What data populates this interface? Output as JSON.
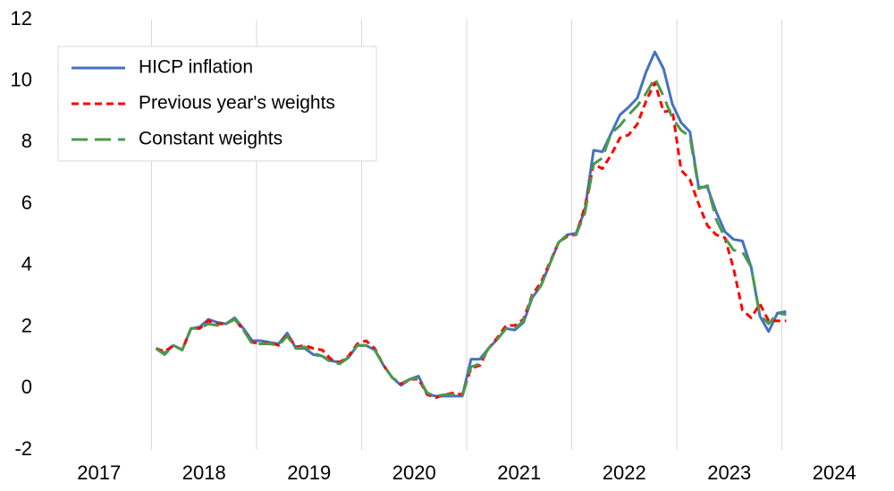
{
  "chart_data": {
    "type": "line",
    "categories": [
      "2017",
      "2018",
      "2019",
      "2020",
      "2021",
      "2022",
      "2023",
      "2024"
    ],
    "ylim": [
      -2,
      12
    ],
    "yticks": [
      -2,
      0,
      2,
      4,
      6,
      8,
      10,
      12
    ],
    "legend": "upper left",
    "series": [
      {
        "name": "HICP inflation",
        "color": "#4472c4",
        "dash": "solid",
        "values": [
          [],
          [
            1.3,
            1.15,
            1.4,
            1.25,
            1.95,
            2.0,
            2.25,
            2.15,
            2.1,
            2.3,
            1.95,
            1.55
          ],
          [
            1.55,
            1.5,
            1.45,
            1.8,
            1.3,
            1.3,
            1.1,
            1.05,
            0.9,
            0.85,
            1.0,
            1.4
          ],
          [
            1.4,
            1.25,
            0.75,
            0.35,
            0.1,
            0.3,
            0.4,
            -0.2,
            -0.25,
            -0.25,
            -0.25,
            -0.25
          ],
          [
            0.95,
            0.95,
            1.3,
            1.6,
            1.95,
            1.9,
            2.15,
            2.95,
            3.35,
            4.05,
            4.75,
            5.0
          ],
          [
            5.05,
            5.8,
            7.75,
            7.7,
            8.3,
            8.9,
            9.15,
            9.45,
            10.3,
            10.95,
            10.4,
            9.25
          ],
          [
            8.65,
            8.35,
            6.55,
            6.55,
            5.75,
            5.1,
            4.85,
            4.8,
            3.95,
            2.35,
            1.85,
            2.45
          ],
          [
            2.5
          ]
        ]
      },
      {
        "name": "Previous year's weights",
        "color": "#ff0000",
        "dash": "short",
        "values": [
          [],
          [
            1.3,
            1.2,
            1.4,
            1.25,
            1.95,
            1.95,
            2.2,
            2.1,
            2.1,
            2.25,
            1.9,
            1.5
          ],
          [
            1.45,
            1.5,
            1.4,
            1.75,
            1.35,
            1.4,
            1.3,
            1.25,
            0.95,
            0.85,
            1.05,
            1.45
          ],
          [
            1.55,
            1.3,
            0.75,
            0.35,
            0.15,
            0.3,
            0.3,
            -0.2,
            -0.3,
            -0.2,
            -0.15,
            -0.2
          ],
          [
            0.65,
            0.75,
            1.3,
            1.65,
            2.05,
            2.05,
            2.25,
            3.05,
            3.45,
            4.1,
            4.75,
            4.95
          ],
          [
            5.0,
            5.9,
            7.3,
            7.15,
            7.6,
            8.15,
            8.25,
            8.6,
            9.35,
            9.95,
            9.0,
            9.05
          ],
          [
            7.1,
            6.8,
            6.0,
            5.3,
            5.0,
            4.9,
            3.9,
            2.55,
            2.3,
            2.75,
            2.2,
            2.2
          ],
          [
            2.2
          ]
        ]
      },
      {
        "name": "Constant weights",
        "color": "#4a9a4a",
        "dash": "long",
        "values": [
          [],
          [
            1.3,
            1.1,
            1.4,
            1.25,
            1.95,
            1.95,
            2.1,
            2.05,
            2.1,
            2.25,
            1.9,
            1.45
          ],
          [
            1.45,
            1.45,
            1.4,
            1.7,
            1.3,
            1.35,
            1.15,
            1.05,
            0.85,
            0.8,
            1.0,
            1.4
          ],
          [
            1.4,
            1.25,
            0.75,
            0.35,
            0.15,
            0.3,
            0.35,
            -0.15,
            -0.25,
            -0.2,
            -0.2,
            -0.25
          ],
          [
            0.7,
            0.8,
            1.3,
            1.6,
            1.95,
            1.95,
            2.2,
            3.0,
            3.35,
            4.05,
            4.75,
            5.0
          ],
          [
            5.0,
            5.7,
            7.3,
            7.5,
            8.3,
            8.55,
            8.9,
            9.2,
            9.6,
            10.1,
            9.5,
            8.8
          ],
          [
            8.4,
            8.2,
            6.5,
            6.6,
            5.5,
            4.9,
            4.5,
            4.45,
            3.95,
            2.4,
            2.1,
            2.45
          ],
          [
            2.4
          ]
        ]
      }
    ]
  }
}
